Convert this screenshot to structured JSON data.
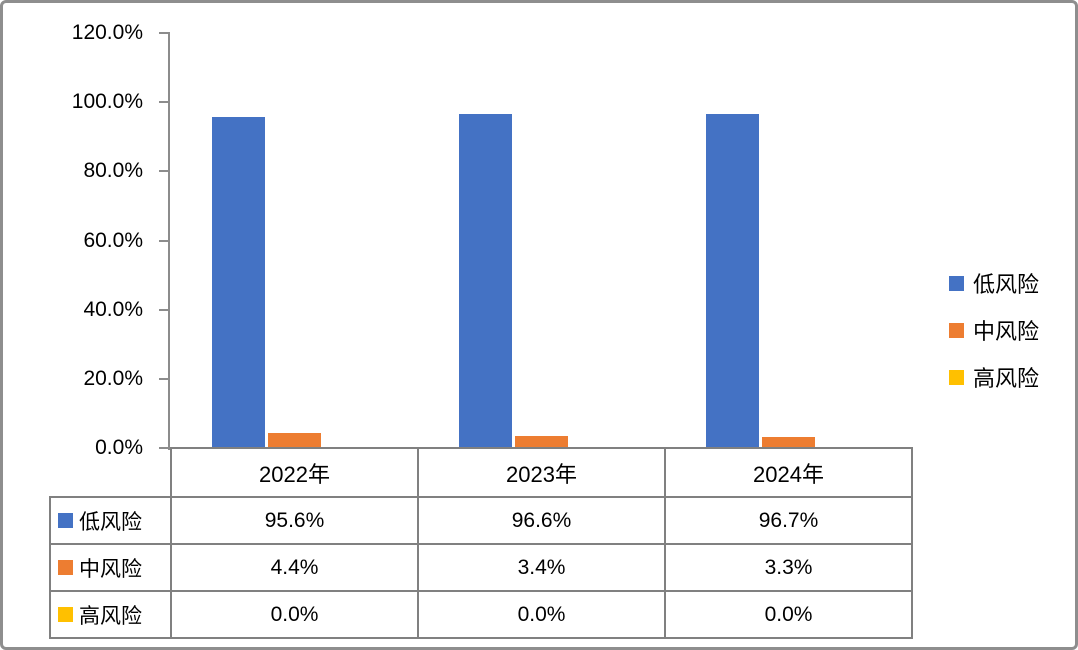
{
  "chart_data": {
    "type": "bar",
    "title": "",
    "categories": [
      "2022年",
      "2023年",
      "2024年"
    ],
    "series": [
      {
        "name": "低风险",
        "color": "#4472C4",
        "values": [
          95.6,
          96.6,
          96.7
        ],
        "labels": [
          "95.6%",
          "96.6%",
          "96.7%"
        ]
      },
      {
        "name": "中风险",
        "color": "#ED7D31",
        "values": [
          4.4,
          3.4,
          3.3
        ],
        "labels": [
          "4.4%",
          "3.4%",
          "3.3%"
        ]
      },
      {
        "name": "高风险",
        "color": "#FFC000",
        "values": [
          0.0,
          0.0,
          0.0
        ],
        "labels": [
          "0.0%",
          "0.0%",
          "0.0%"
        ]
      }
    ],
    "ylim": [
      0,
      120
    ],
    "ytick_step": 20,
    "ytick_labels": [
      "0.0%",
      "20.0%",
      "40.0%",
      "60.0%",
      "80.0%",
      "100.0%",
      "120.0%"
    ],
    "grid": false,
    "legend_position": "right",
    "has_data_table": true,
    "axis_color": "#8c8c8c",
    "table_border_color": "#808080"
  }
}
